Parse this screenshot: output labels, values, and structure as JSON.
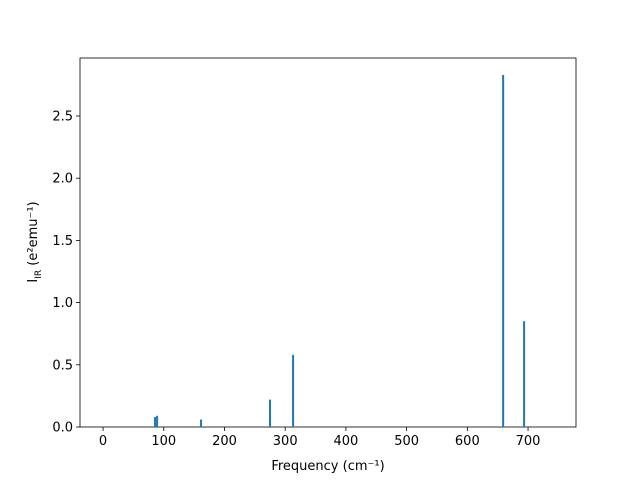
{
  "chart_data": {
    "type": "bar",
    "xlabel": "Frequency (cm⁻¹)",
    "ylabel": {
      "base": "I",
      "sub": "IR",
      "unit": " (e²emu⁻¹)"
    },
    "x": [
      85.6,
      89,
      161.4,
      275,
      313,
      659,
      693.5
    ],
    "values": [
      0.08,
      0.09,
      0.06,
      0.22,
      0.58,
      2.83,
      0.85
    ],
    "color": "#1f77b4",
    "xlim": [
      -38,
      779
    ],
    "xticks": [
      0,
      100,
      200,
      300,
      400,
      500,
      600,
      700
    ],
    "ylim": [
      0,
      2.966
    ],
    "yticks": [
      {
        "value": 0,
        "label": "0.0"
      },
      {
        "value": 0.5,
        "label": "0.5"
      },
      {
        "value": 1,
        "label": "1.0"
      },
      {
        "value": 1.5,
        "label": "1.5"
      },
      {
        "value": 2,
        "label": "2.0"
      },
      {
        "value": 2.5,
        "label": "2.5"
      }
    ],
    "grid": false
  }
}
